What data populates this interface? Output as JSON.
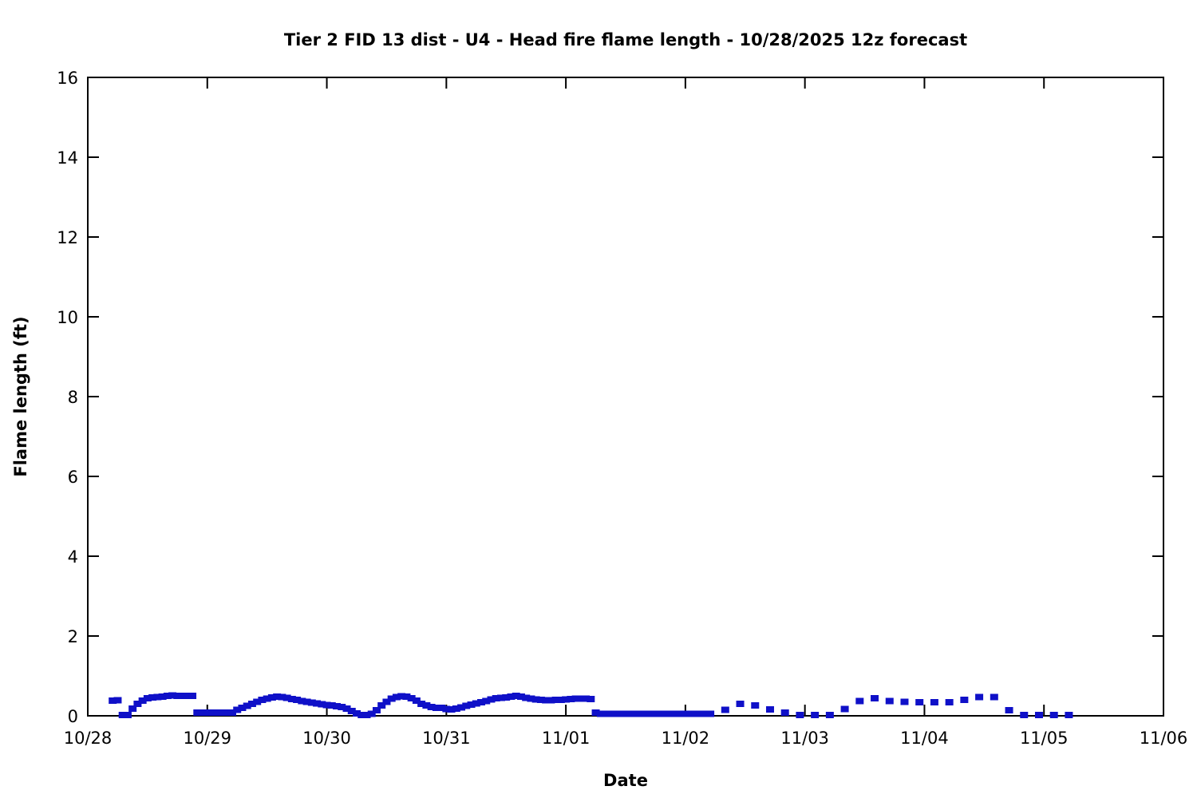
{
  "chart_data": {
    "type": "scatter",
    "title": "Tier 2 FID 13 dist - U4 - Head fire flame length - 10/28/2025 12z forecast",
    "xlabel": "Date",
    "ylabel": "Flame length (ft)",
    "x_tick_labels": [
      "10/28",
      "10/29",
      "10/30",
      "10/31",
      "11/01",
      "11/02",
      "11/03",
      "11/04",
      "11/05",
      "11/06"
    ],
    "y_tick_labels": [
      0,
      2,
      4,
      6,
      8,
      10,
      12,
      14,
      16
    ],
    "ylim": [
      0,
      16
    ],
    "xlim_hours_from_1028_00z": [
      0,
      216
    ],
    "grid": false,
    "legend_position": "none",
    "marker": {
      "shape": "square",
      "color": "#0f10c8",
      "width": 10,
      "height": 8
    },
    "axis_color": "#000000",
    "background_color": "#ffffff",
    "points_t_hours_value_ft": [
      [
        5,
        0.38
      ],
      [
        6,
        0.39
      ],
      [
        7,
        0.02
      ],
      [
        8,
        0.02
      ],
      [
        9,
        0.18
      ],
      [
        10,
        0.3
      ],
      [
        11,
        0.38
      ],
      [
        12,
        0.44
      ],
      [
        13,
        0.46
      ],
      [
        14,
        0.47
      ],
      [
        15,
        0.48
      ],
      [
        16,
        0.5
      ],
      [
        17,
        0.51
      ],
      [
        18,
        0.5
      ],
      [
        19,
        0.5
      ],
      [
        20,
        0.5
      ],
      [
        21,
        0.5
      ],
      [
        22,
        0.08
      ],
      [
        23,
        0.08
      ],
      [
        24,
        0.08
      ],
      [
        25,
        0.08
      ],
      [
        26,
        0.08
      ],
      [
        27,
        0.08
      ],
      [
        28,
        0.08
      ],
      [
        29,
        0.08
      ],
      [
        30,
        0.15
      ],
      [
        31,
        0.2
      ],
      [
        32,
        0.25
      ],
      [
        33,
        0.3
      ],
      [
        34,
        0.35
      ],
      [
        35,
        0.4
      ],
      [
        36,
        0.43
      ],
      [
        37,
        0.46
      ],
      [
        38,
        0.48
      ],
      [
        39,
        0.47
      ],
      [
        40,
        0.45
      ],
      [
        41,
        0.42
      ],
      [
        42,
        0.4
      ],
      [
        43,
        0.37
      ],
      [
        44,
        0.35
      ],
      [
        45,
        0.33
      ],
      [
        46,
        0.31
      ],
      [
        47,
        0.29
      ],
      [
        48,
        0.27
      ],
      [
        49,
        0.26
      ],
      [
        50,
        0.24
      ],
      [
        51,
        0.22
      ],
      [
        52,
        0.18
      ],
      [
        53,
        0.12
      ],
      [
        54,
        0.06
      ],
      [
        55,
        0.02
      ],
      [
        56,
        0.02
      ],
      [
        57,
        0.05
      ],
      [
        58,
        0.14
      ],
      [
        59,
        0.26
      ],
      [
        60,
        0.35
      ],
      [
        61,
        0.43
      ],
      [
        62,
        0.47
      ],
      [
        63,
        0.49
      ],
      [
        64,
        0.48
      ],
      [
        65,
        0.44
      ],
      [
        66,
        0.38
      ],
      [
        67,
        0.3
      ],
      [
        68,
        0.26
      ],
      [
        69,
        0.22
      ],
      [
        70,
        0.2
      ],
      [
        71,
        0.2
      ],
      [
        72,
        0.17
      ],
      [
        73,
        0.16
      ],
      [
        74,
        0.18
      ],
      [
        75,
        0.21
      ],
      [
        76,
        0.25
      ],
      [
        77,
        0.28
      ],
      [
        78,
        0.31
      ],
      [
        79,
        0.34
      ],
      [
        80,
        0.37
      ],
      [
        81,
        0.41
      ],
      [
        82,
        0.44
      ],
      [
        83,
        0.45
      ],
      [
        84,
        0.46
      ],
      [
        85,
        0.48
      ],
      [
        86,
        0.5
      ],
      [
        87,
        0.48
      ],
      [
        88,
        0.45
      ],
      [
        89,
        0.43
      ],
      [
        90,
        0.41
      ],
      [
        91,
        0.4
      ],
      [
        92,
        0.39
      ],
      [
        93,
        0.39
      ],
      [
        94,
        0.4
      ],
      [
        95,
        0.4
      ],
      [
        96,
        0.41
      ],
      [
        97,
        0.42
      ],
      [
        98,
        0.43
      ],
      [
        99,
        0.43
      ],
      [
        100,
        0.43
      ],
      [
        101,
        0.42
      ],
      [
        102,
        0.08
      ],
      [
        103,
        0.05
      ],
      [
        104,
        0.05
      ],
      [
        105,
        0.05
      ],
      [
        106,
        0.05
      ],
      [
        107,
        0.05
      ],
      [
        108,
        0.05
      ],
      [
        109,
        0.05
      ],
      [
        110,
        0.05
      ],
      [
        111,
        0.05
      ],
      [
        112,
        0.05
      ],
      [
        113,
        0.05
      ],
      [
        114,
        0.05
      ],
      [
        115,
        0.05
      ],
      [
        116,
        0.05
      ],
      [
        117,
        0.05
      ],
      [
        118,
        0.05
      ],
      [
        119,
        0.05
      ],
      [
        120,
        0.05
      ],
      [
        121,
        0.05
      ],
      [
        122,
        0.05
      ],
      [
        123,
        0.05
      ],
      [
        124,
        0.05
      ],
      [
        125,
        0.05
      ],
      [
        128,
        0.15
      ],
      [
        131,
        0.3
      ],
      [
        134,
        0.26
      ],
      [
        137,
        0.16
      ],
      [
        140,
        0.08
      ],
      [
        143,
        0.02
      ],
      [
        146,
        0.02
      ],
      [
        149,
        0.02
      ],
      [
        152,
        0.17
      ],
      [
        155,
        0.37
      ],
      [
        158,
        0.44
      ],
      [
        161,
        0.37
      ],
      [
        164,
        0.35
      ],
      [
        167,
        0.34
      ],
      [
        170,
        0.34
      ],
      [
        173,
        0.34
      ],
      [
        176,
        0.4
      ],
      [
        179,
        0.47
      ],
      [
        182,
        0.47
      ],
      [
        185,
        0.14
      ],
      [
        188,
        0.02
      ],
      [
        191,
        0.02
      ],
      [
        194,
        0.02
      ],
      [
        197,
        0.02
      ]
    ]
  }
}
